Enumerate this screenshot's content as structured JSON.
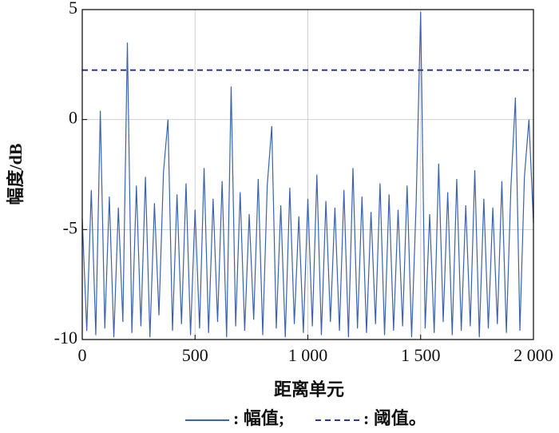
{
  "chart_data": {
    "type": "line",
    "xlabel": "距离单元",
    "ylabel": "幅度/dB",
    "xlim": [
      0,
      2000
    ],
    "ylim": [
      -10,
      5
    ],
    "xticks": [
      0,
      500,
      {
        "value": 1000,
        "label": "1 000"
      },
      {
        "value": 1500,
        "label": "1 500"
      },
      {
        "value": 2000,
        "label": "2 000"
      }
    ],
    "yticks": [
      5,
      0,
      -5,
      -10
    ],
    "grid": true,
    "series": [
      {
        "name": ": 幅值;",
        "color": "#3a62ad",
        "dash": false,
        "x": [
          0,
          20,
          40,
          60,
          80,
          100,
          120,
          140,
          160,
          180,
          200,
          220,
          240,
          260,
          280,
          300,
          320,
          340,
          360,
          380,
          400,
          420,
          440,
          460,
          480,
          500,
          520,
          540,
          560,
          580,
          600,
          620,
          640,
          660,
          680,
          700,
          720,
          740,
          760,
          780,
          800,
          820,
          840,
          860,
          880,
          900,
          920,
          940,
          960,
          980,
          1000,
          1020,
          1040,
          1060,
          1080,
          1100,
          1120,
          1140,
          1160,
          1180,
          1200,
          1220,
          1240,
          1260,
          1280,
          1300,
          1320,
          1340,
          1360,
          1380,
          1400,
          1420,
          1440,
          1460,
          1480,
          1500,
          1520,
          1540,
          1560,
          1580,
          1600,
          1620,
          1640,
          1660,
          1680,
          1700,
          1720,
          1740,
          1760,
          1780,
          1800,
          1820,
          1840,
          1860,
          1880,
          1900,
          1920,
          1940,
          1960,
          1980,
          2000
        ],
        "values": [
          -4.5,
          -9.6,
          -3.2,
          -9.8,
          0.4,
          -9.5,
          -3.5,
          -9.9,
          -4.0,
          -9.2,
          3.5,
          -9.7,
          -3.0,
          -9.4,
          -2.6,
          -9.9,
          -3.8,
          -8.9,
          -2.4,
          0.0,
          -9.6,
          -3.4,
          -9.3,
          -2.9,
          -9.8,
          -4.1,
          -9.5,
          -2.2,
          -9.7,
          -3.6,
          -9.2,
          -2.8,
          -9.9,
          1.5,
          -9.4,
          -3.3,
          -9.6,
          -4.3,
          -9.1,
          -2.7,
          -9.8,
          -3.0,
          -0.3,
          -9.5,
          -3.9,
          -9.9,
          -3.1,
          -9.3,
          -4.4,
          -9.7,
          -3.6,
          -9.4,
          -2.5,
          -9.8,
          -3.7,
          -9.2,
          -4.0,
          -9.6,
          -3.2,
          -9.9,
          -2.2,
          -9.5,
          -3.5,
          -9.7,
          -4.2,
          -9.3,
          -2.9,
          -9.8,
          -3.4,
          -9.6,
          -4.1,
          -9.4,
          -3.0,
          -9.9,
          -3.8,
          4.9,
          -9.5,
          -4.3,
          -9.7,
          -2.0,
          -9.2,
          -3.3,
          -9.8,
          -2.7,
          -9.6,
          -3.9,
          -9.4,
          -2.3,
          -9.9,
          -3.6,
          -9.5,
          -4.0,
          -9.3,
          -2.8,
          -9.7,
          -3.1,
          1.0,
          -9.6,
          -2.6,
          0.0,
          -4.7
        ]
      },
      {
        "name": ": 阈值。",
        "color": "#2b3990",
        "dash": true,
        "x": [
          0,
          2000
        ],
        "values": [
          2.25,
          2.25
        ]
      }
    ]
  }
}
